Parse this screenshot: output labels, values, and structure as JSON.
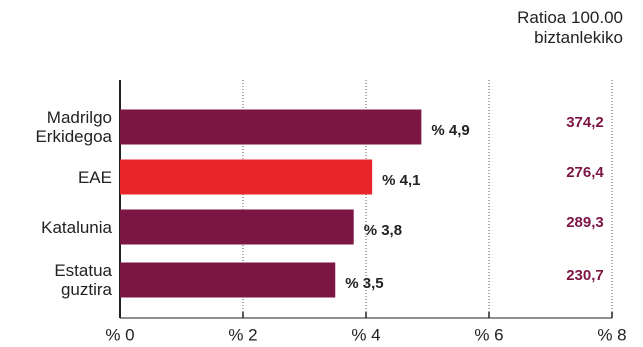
{
  "chart_data": {
    "type": "bar",
    "orientation": "horizontal",
    "categories": [
      "Madrilgo Erkidegoa",
      "EAE",
      "Katalunia",
      "Estatua guztira"
    ],
    "values": [
      4.9,
      4.1,
      3.8,
      3.5
    ],
    "value_labels": [
      "% 4,9",
      "% 4,1",
      "% 3,8",
      "% 3,5"
    ],
    "colors": [
      "#7d1544",
      "#e8262a",
      "#7d1544",
      "#7d1544"
    ],
    "xlim": [
      0,
      8
    ],
    "xticks": [
      {
        "value": 0,
        "label": "% 0"
      },
      {
        "value": 2,
        "label": "% 2"
      },
      {
        "value": 4,
        "label": "% 4"
      },
      {
        "value": 6,
        "label": "% 6"
      },
      {
        "value": 8,
        "label": "% 8"
      }
    ],
    "grid": true,
    "ratio_header": "Ratioa 100.00 biztanlekiko",
    "ratios": [
      "374,2",
      "276,4",
      "289,3",
      "230,7"
    ],
    "ratio_color": "#7d1544"
  }
}
